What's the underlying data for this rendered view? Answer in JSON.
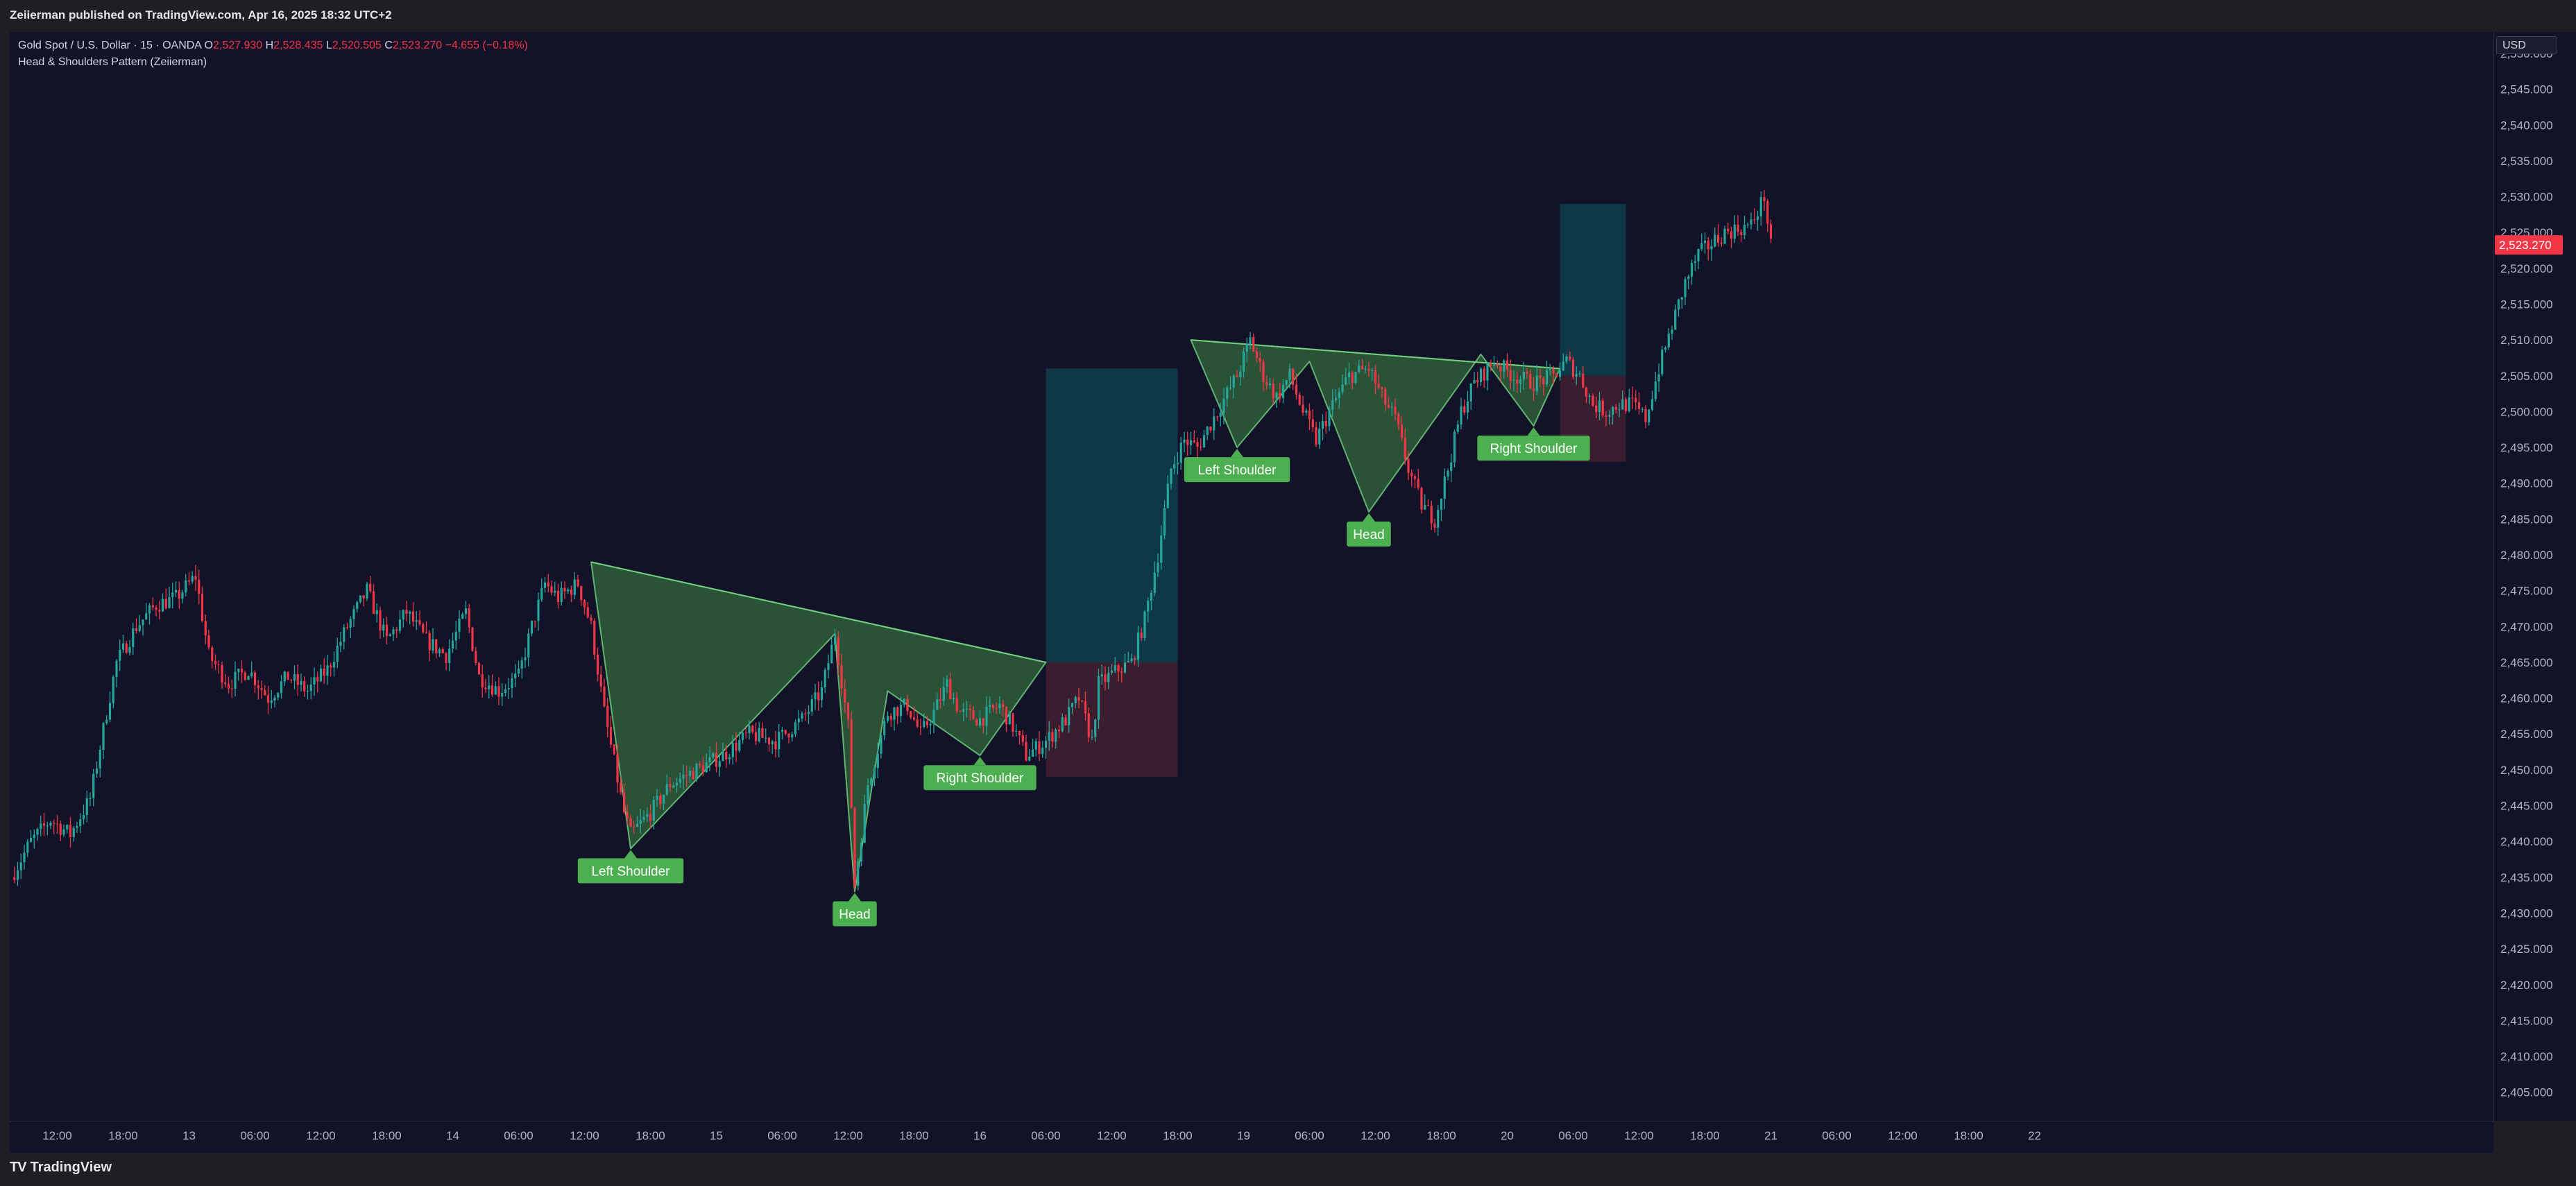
{
  "publisher_line": "Zeiierman published on TradingView.com, Apr 16, 2025 18:32 UTC+2",
  "legend": {
    "symbol": "Gold Spot / U.S. Dollar · 15 · OANDA",
    "open_label": "O",
    "open": "2,527.930",
    "high_label": "H",
    "high": "2,528.435",
    "low_label": "L",
    "low": "2,520.505",
    "close_label": "C",
    "close": "2,523.270",
    "change": "−4.655 (−0.18%)",
    "indicator": "Head & Shoulders Pattern (Zeiierman)"
  },
  "currency_button": "USD",
  "last_price": "2,523.270",
  "brand": "TradingView",
  "colors": {
    "background": "#121329",
    "bull": "#26a69a",
    "bear": "#f23645",
    "pattern_fill": "#2e5e3a",
    "label_bg": "#4caf50",
    "target_zone": "#0f3a4a",
    "stop_zone": "#3d1d2e"
  },
  "chart_data": {
    "type": "line",
    "title": "",
    "xlabel": "",
    "ylabel": "",
    "ylim": [
      2401,
      2553
    ],
    "y_ticks": [
      "2,405.000",
      "2,410.000",
      "2,415.000",
      "2,420.000",
      "2,425.000",
      "2,430.000",
      "2,435.000",
      "2,440.000",
      "2,445.000",
      "2,450.000",
      "2,455.000",
      "2,460.000",
      "2,465.000",
      "2,470.000",
      "2,475.000",
      "2,480.000",
      "2,485.000",
      "2,490.000",
      "2,495.000",
      "2,500.000",
      "2,505.000",
      "2,510.000",
      "2,515.000",
      "2,520.000",
      "2,525.000",
      "2,530.000",
      "2,535.000",
      "2,540.000",
      "2,545.000",
      "2,550.000"
    ],
    "x_ticks": [
      "12:00",
      "18:00",
      "13",
      "06:00",
      "12:00",
      "18:00",
      "14",
      "06:00",
      "12:00",
      "18:00",
      "15",
      "06:00",
      "12:00",
      "18:00",
      "16",
      "06:00",
      "12:00",
      "18:00",
      "19",
      "06:00",
      "12:00",
      "18:00",
      "20",
      "06:00",
      "12:00",
      "18:00",
      "21",
      "06:00",
      "12:00",
      "18:00",
      "22"
    ],
    "x_tick_index": [
      0.7,
      1.7,
      2.7,
      3.7,
      4.7,
      5.7,
      6.7,
      7.7,
      8.7,
      9.7,
      10.7,
      11.7,
      12.7,
      13.7,
      14.7,
      15.7,
      16.7,
      17.7,
      18.7,
      19.7,
      20.7,
      21.7,
      22.7,
      23.7,
      24.7,
      25.7,
      26.7,
      27.7,
      28.7,
      29.7,
      30.7
    ],
    "price_path": [
      [
        0.0,
        2435
      ],
      [
        0.3,
        2440
      ],
      [
        0.6,
        2443
      ],
      [
        0.9,
        2441
      ],
      [
        1.2,
        2446
      ],
      [
        1.45,
        2458
      ],
      [
        1.6,
        2465
      ],
      [
        1.9,
        2470
      ],
      [
        2.2,
        2473
      ],
      [
        2.5,
        2474
      ],
      [
        2.8,
        2477
      ],
      [
        3.0,
        2466
      ],
      [
        3.3,
        2462
      ],
      [
        3.6,
        2464
      ],
      [
        3.9,
        2460
      ],
      [
        4.2,
        2463
      ],
      [
        4.5,
        2461
      ],
      [
        4.8,
        2464
      ],
      [
        5.1,
        2470
      ],
      [
        5.4,
        2475
      ],
      [
        5.7,
        2468
      ],
      [
        6.0,
        2472
      ],
      [
        6.3,
        2468
      ],
      [
        6.6,
        2466
      ],
      [
        6.9,
        2472
      ],
      [
        7.1,
        2463
      ],
      [
        7.4,
        2461
      ],
      [
        7.7,
        2463
      ],
      [
        7.9,
        2470
      ],
      [
        8.1,
        2476
      ],
      [
        8.3,
        2474
      ],
      [
        8.6,
        2476
      ],
      [
        8.8,
        2470
      ],
      [
        9.0,
        2458
      ],
      [
        9.3,
        2444
      ],
      [
        9.4,
        2441
      ],
      [
        9.7,
        2444
      ],
      [
        10.0,
        2448
      ],
      [
        10.4,
        2450
      ],
      [
        10.8,
        2452
      ],
      [
        11.2,
        2455
      ],
      [
        11.6,
        2454
      ],
      [
        12.0,
        2457
      ],
      [
        12.3,
        2461
      ],
      [
        12.5,
        2469
      ],
      [
        12.7,
        2456
      ],
      [
        12.8,
        2434
      ],
      [
        13.0,
        2448
      ],
      [
        13.3,
        2458
      ],
      [
        13.6,
        2459
      ],
      [
        13.8,
        2455
      ],
      [
        14.0,
        2458
      ],
      [
        14.2,
        2462
      ],
      [
        14.4,
        2458
      ],
      [
        14.7,
        2457
      ],
      [
        15.0,
        2459
      ],
      [
        15.2,
        2456
      ],
      [
        15.4,
        2452
      ],
      [
        15.7,
        2454
      ],
      [
        16.0,
        2457
      ],
      [
        16.2,
        2460
      ],
      [
        16.4,
        2454
      ],
      [
        16.5,
        2462
      ],
      [
        16.8,
        2464
      ],
      [
        17.0,
        2465
      ],
      [
        17.2,
        2471
      ],
      [
        17.4,
        2480
      ],
      [
        17.6,
        2492
      ],
      [
        17.8,
        2496
      ],
      [
        18.0,
        2495
      ],
      [
        18.3,
        2500
      ],
      [
        18.6,
        2505
      ],
      [
        18.8,
        2510
      ],
      [
        19.0,
        2505
      ],
      [
        19.2,
        2502
      ],
      [
        19.4,
        2505
      ],
      [
        19.6,
        2500
      ],
      [
        19.8,
        2496
      ],
      [
        20.0,
        2500
      ],
      [
        20.3,
        2505
      ],
      [
        20.6,
        2506
      ],
      [
        20.8,
        2502
      ],
      [
        21.0,
        2499
      ],
      [
        21.2,
        2492
      ],
      [
        21.4,
        2487
      ],
      [
        21.6,
        2485
      ],
      [
        21.8,
        2492
      ],
      [
        22.0,
        2500
      ],
      [
        22.2,
        2504
      ],
      [
        22.5,
        2507
      ],
      [
        22.8,
        2505
      ],
      [
        23.1,
        2504
      ],
      [
        23.4,
        2505
      ],
      [
        23.6,
        2507
      ],
      [
        23.8,
        2505
      ],
      [
        24.0,
        2501
      ],
      [
        24.2,
        2500
      ],
      [
        24.4,
        2501
      ],
      [
        24.6,
        2501
      ],
      [
        24.8,
        2499
      ],
      [
        25.0,
        2506
      ],
      [
        25.2,
        2512
      ],
      [
        25.4,
        2518
      ],
      [
        25.6,
        2522
      ],
      [
        26.0,
        2525
      ],
      [
        26.4,
        2526
      ],
      [
        26.6,
        2530
      ],
      [
        26.7,
        2523
      ]
    ],
    "patterns": [
      {
        "labels": [
          "Left Shoulder",
          "Head",
          "Right Shoulder"
        ],
        "points": [
          [
            8.8,
            2479
          ],
          [
            9.4,
            2439
          ],
          [
            12.5,
            2469
          ],
          [
            12.8,
            2433
          ],
          [
            13.3,
            2461
          ],
          [
            14.7,
            2452
          ],
          [
            15.7,
            2465
          ]
        ],
        "label_anchor": [
          [
            9.4,
            2439
          ],
          [
            12.8,
            2433
          ],
          [
            14.7,
            2452
          ]
        ],
        "target_zone": [
          15.7,
          17.7,
          2465,
          2506
        ],
        "stop_zone": [
          15.7,
          17.7,
          2449,
          2465
        ]
      },
      {
        "labels": [
          "Left Shoulder",
          "Head",
          "Right Shoulder"
        ],
        "points": [
          [
            17.9,
            2510
          ],
          [
            18.6,
            2495
          ],
          [
            19.7,
            2507
          ],
          [
            20.6,
            2486
          ],
          [
            22.3,
            2508
          ],
          [
            23.1,
            2498
          ],
          [
            23.5,
            2506
          ]
        ],
        "label_anchor": [
          [
            18.6,
            2495
          ],
          [
            20.6,
            2486
          ],
          [
            23.1,
            2498
          ]
        ],
        "target_zone": [
          23.5,
          24.5,
          2505,
          2529
        ],
        "stop_zone": [
          23.5,
          24.5,
          2493,
          2505
        ]
      }
    ],
    "grid": false,
    "legend": "top-left"
  }
}
